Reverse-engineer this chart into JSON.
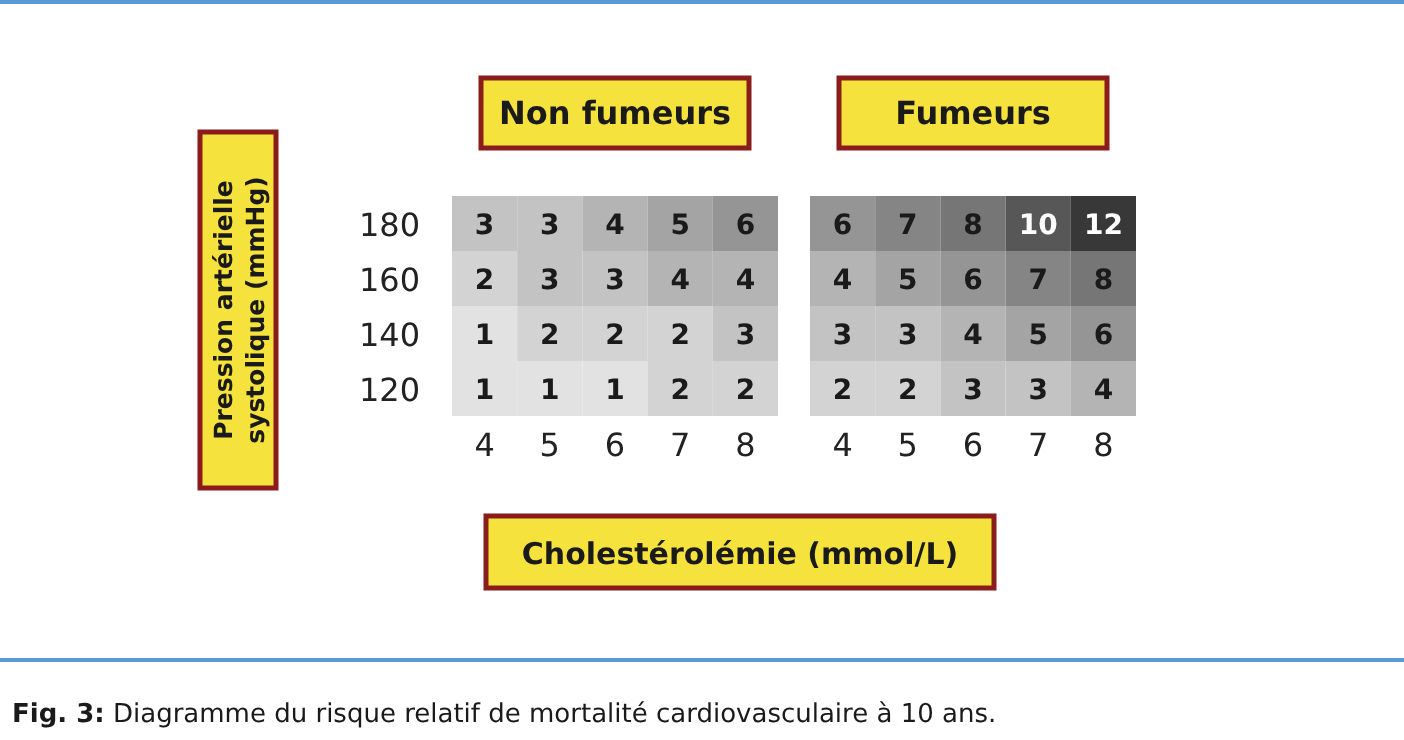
{
  "chart_data": [
    {
      "type": "heatmap",
      "title": "Non fumeurs",
      "ylabel": "Pression artérielle systolique (mmHg)",
      "xlabel": "Cholestérolémie (mmol/L)",
      "annotations": [
        "Fig. 3: Diagramme du risque relatif de mortalité cardiovasculaire à 10 ans."
      ],
      "data_labels": true,
      "categories": [
        "4",
        "5",
        "6",
        "7",
        "8"
      ],
      "y_categories": [
        "180",
        "160",
        "140",
        "120"
      ],
      "cells": [
        [
          3,
          3,
          4,
          5,
          6
        ],
        [
          2,
          3,
          3,
          4,
          4
        ],
        [
          1,
          2,
          2,
          2,
          3
        ],
        [
          1,
          1,
          1,
          2,
          2
        ]
      ]
    },
    {
      "type": "heatmap",
      "title": "Fumeurs",
      "tick_labels": "x",
      "data_labels": true,
      "categories": [
        "4",
        "5",
        "6",
        "7",
        "8"
      ],
      "y_categories": [
        "180",
        "160",
        "140",
        "120"
      ],
      "cells": [
        [
          6,
          7,
          8,
          10,
          12
        ],
        [
          4,
          5,
          6,
          7,
          8
        ],
        [
          3,
          3,
          4,
          5,
          6
        ],
        [
          2,
          2,
          3,
          3,
          4
        ]
      ]
    }
  ]
}
